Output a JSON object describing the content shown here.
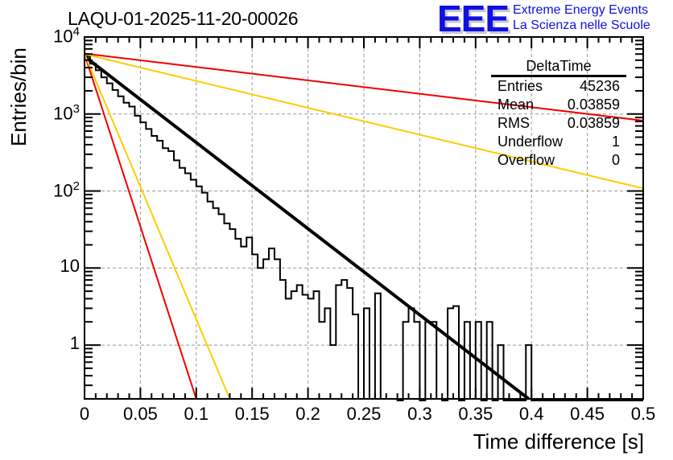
{
  "chart_data": {
    "type": "line",
    "title": "LAQU-01-2025-11-20-00026",
    "xlabel": "Time difference [s]",
    "ylabel": "Entries/bin",
    "xlim": [
      0,
      0.5
    ],
    "ylim": [
      0.2,
      10000
    ],
    "yscale": "log",
    "grid": true,
    "x_ticks": [
      "0",
      "0.05",
      "0.1",
      "0.15",
      "0.2",
      "0.25",
      "0.3",
      "0.35",
      "0.4",
      "0.45",
      "0.5"
    ],
    "x_tick_values": [
      0,
      0.05,
      0.1,
      0.15,
      0.2,
      0.25,
      0.3,
      0.35,
      0.4,
      0.45,
      0.5
    ],
    "y_ticks": [
      {
        "value": 10000,
        "base": "10",
        "exp": "4"
      },
      {
        "value": 1000,
        "base": "10",
        "exp": "3"
      },
      {
        "value": 100,
        "base": "10",
        "exp": "2"
      },
      {
        "value": 10,
        "base": "10",
        "exp": ""
      },
      {
        "value": 1,
        "base": "1",
        "exp": ""
      }
    ],
    "histogram": {
      "name": "DeltaTime",
      "color": "#000000",
      "bin_width": 0.005,
      "x_start": 0,
      "values": [
        5600,
        4500,
        3700,
        3000,
        2500,
        2050,
        1700,
        1400,
        1250,
        950,
        780,
        640,
        520,
        450,
        360,
        330,
        250,
        200,
        170,
        140,
        115,
        95,
        73,
        60,
        50,
        38,
        32,
        24,
        19,
        25,
        15,
        10,
        13,
        18,
        13,
        7,
        4,
        5,
        6,
        4.5,
        4,
        5,
        2,
        3,
        1,
        6,
        7,
        5.5,
        2.5,
        0.2,
        3,
        0.2,
        4.7,
        0.2,
        0.2,
        0.2,
        0,
        2,
        3,
        2,
        0,
        2,
        2,
        0.2,
        0,
        3,
        3.2,
        0,
        2,
        0.2,
        2,
        0,
        2,
        0,
        1,
        0,
        0,
        0,
        0,
        1,
        0,
        0,
        0,
        0,
        0,
        0,
        0,
        0,
        0,
        0,
        0,
        0,
        0,
        0,
        0,
        0,
        0,
        0,
        0,
        0
      ]
    },
    "series": [
      {
        "name": "fit",
        "color": "#000000",
        "x": [
          0,
          0.3975
        ],
        "y": [
          5600,
          0.2
        ]
      },
      {
        "name": "red-slow",
        "color": "#ee0000",
        "x": [
          0,
          0.5
        ],
        "y": [
          6100,
          820
        ]
      },
      {
        "name": "yellow-slow",
        "color": "#ffcc00",
        "x": [
          0,
          0.5
        ],
        "y": [
          6000,
          108
        ]
      },
      {
        "name": "red-fast",
        "color": "#ee0000",
        "x": [
          0,
          0.1
        ],
        "y": [
          6000,
          0.2
        ]
      },
      {
        "name": "yellow-fast",
        "color": "#ffcc00",
        "x": [
          0,
          0.13
        ],
        "y": [
          6000,
          0.2
        ]
      }
    ]
  },
  "stats_box": {
    "title": "DeltaTime",
    "rows": [
      {
        "key": "Entries",
        "value": "45236"
      },
      {
        "key": "Mean",
        "value": "0.03859"
      },
      {
        "key": "RMS",
        "value": "0.03859"
      },
      {
        "key": "Underflow",
        "value": "1"
      },
      {
        "key": "Overflow",
        "value": "0"
      }
    ]
  },
  "logo": {
    "mark": "EEE",
    "line1": "Extreme Energy Events",
    "line2": "La Scienza nelle Scuole"
  }
}
